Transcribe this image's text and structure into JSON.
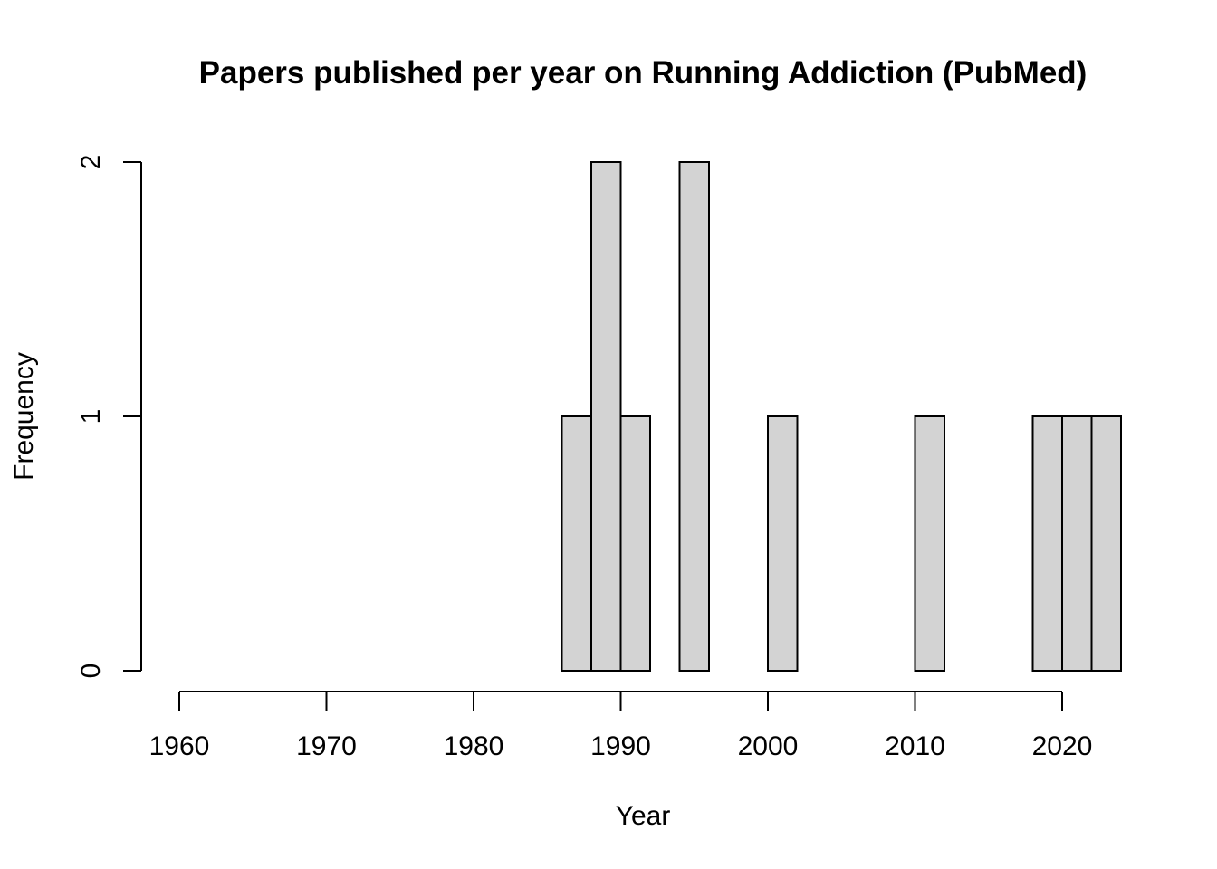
{
  "chart_data": {
    "type": "bar",
    "title": "Papers published per year on Running Addiction (PubMed)",
    "xlabel": "Year",
    "ylabel": "Frequency",
    "x_ticks": [
      "1960",
      "1970",
      "1980",
      "1990",
      "2000",
      "2010",
      "2020"
    ],
    "y_ticks": [
      "0",
      "1",
      "2"
    ],
    "xlim": [
      1960,
      2020
    ],
    "ylim": [
      0,
      2
    ],
    "bin_width": 2,
    "bins": [
      {
        "start": 1986,
        "end": 1988,
        "count": 1
      },
      {
        "start": 1988,
        "end": 1990,
        "count": 2
      },
      {
        "start": 1990,
        "end": 1992,
        "count": 1
      },
      {
        "start": 1992,
        "end": 1994,
        "count": 0
      },
      {
        "start": 1994,
        "end": 1996,
        "count": 2
      },
      {
        "start": 1996,
        "end": 1998,
        "count": 0
      },
      {
        "start": 1998,
        "end": 2000,
        "count": 0
      },
      {
        "start": 2000,
        "end": 2002,
        "count": 1
      },
      {
        "start": 2002,
        "end": 2004,
        "count": 0
      },
      {
        "start": 2004,
        "end": 2006,
        "count": 0
      },
      {
        "start": 2006,
        "end": 2008,
        "count": 0
      },
      {
        "start": 2008,
        "end": 2010,
        "count": 0
      },
      {
        "start": 2010,
        "end": 2012,
        "count": 1
      },
      {
        "start": 2012,
        "end": 2014,
        "count": 0
      },
      {
        "start": 2014,
        "end": 2016,
        "count": 0
      },
      {
        "start": 2016,
        "end": 2018,
        "count": 0
      },
      {
        "start": 2018,
        "end": 2020,
        "count": 1
      },
      {
        "start": 2020,
        "end": 2022,
        "count": 1
      },
      {
        "start": 2022,
        "end": 2024,
        "count": 1
      }
    ],
    "bar_color": "#d3d3d3",
    "bar_border_color": "#000000",
    "grid": false,
    "legend": "none"
  }
}
